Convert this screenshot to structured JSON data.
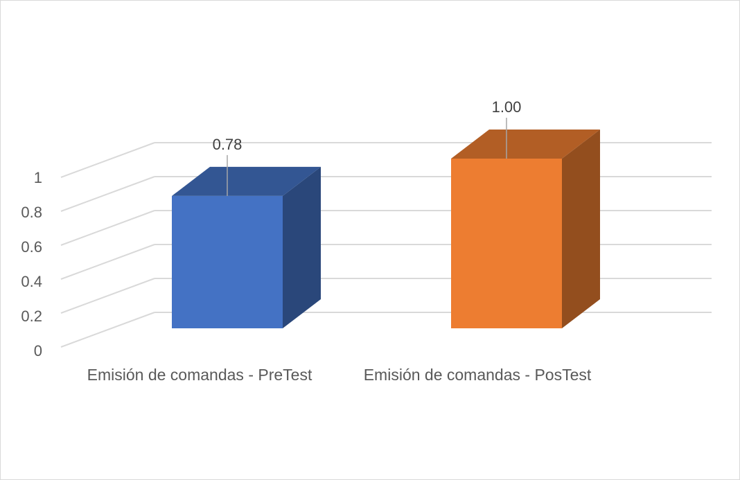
{
  "chart_data": {
    "type": "bar",
    "style": "3d-column",
    "categories": [
      "Emisión de comandas - PreTest",
      "Emisión de comandas - PosTest"
    ],
    "values": [
      0.78,
      1.0
    ],
    "data_labels": [
      "0.78",
      "1.00"
    ],
    "colors": [
      "#4472c4",
      "#ed7d31"
    ],
    "title": "",
    "xlabel": "",
    "ylabel": "",
    "ylim": [
      0,
      1
    ],
    "yticks": [
      0,
      0.2,
      0.4,
      0.6,
      0.8,
      1
    ],
    "ytick_labels": [
      "0",
      "0.2",
      "0.4",
      "0.6",
      "0.8",
      "1"
    ],
    "grid": true,
    "legend": "none"
  }
}
